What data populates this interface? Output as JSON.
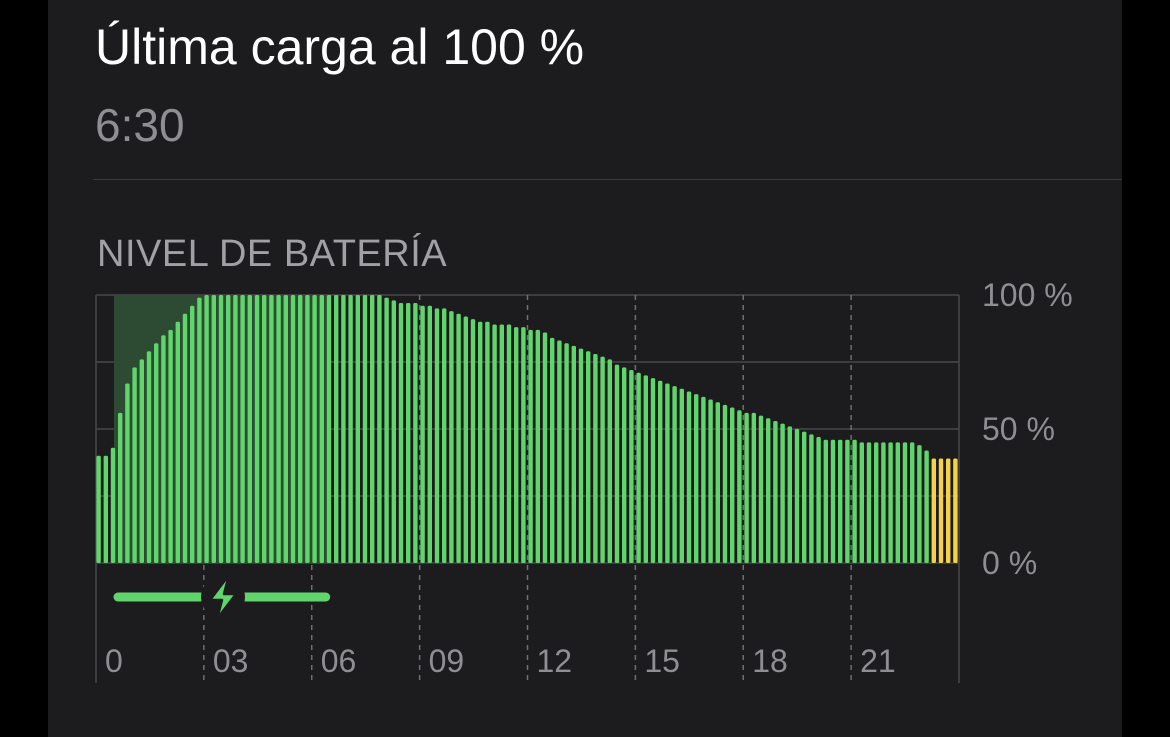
{
  "header": {
    "title": "Última carga al 100 %",
    "time": "6:30"
  },
  "section": {
    "label": "NIVEL DE BATERÍA"
  },
  "colors": {
    "normal": "#5fd56b",
    "low": "#f5d04a",
    "charging_shade": "#2d4a33",
    "charging_bar": "#5fd56b"
  },
  "icons": {
    "charging": "lightning-bolt-icon"
  },
  "chart_data": {
    "type": "bar",
    "title": "NIVEL DE BATERÍA",
    "ylim": [
      0,
      100
    ],
    "yticks": [
      "100 %",
      "50 %",
      "0 %"
    ],
    "xticks": [
      "0",
      "03",
      "06",
      "09",
      "12",
      "15",
      "18",
      "21"
    ],
    "x_range_hours": [
      0,
      24
    ],
    "grid": true,
    "charging_period_hours": [
      0.5,
      6.5
    ],
    "low_power_from_index": 116,
    "values": [
      40,
      40,
      43,
      56,
      67,
      73,
      76,
      79,
      82,
      85,
      87,
      90,
      93,
      96,
      99,
      100,
      100,
      100,
      100,
      100,
      100,
      100,
      100,
      100,
      100,
      100,
      100,
      100,
      100,
      100,
      100,
      100,
      100,
      100,
      100,
      100,
      100,
      100,
      100,
      100,
      99,
      98,
      97,
      97,
      97,
      96,
      96,
      95,
      95,
      94,
      93,
      92,
      91,
      90,
      90,
      89,
      89,
      89,
      88,
      88,
      87,
      87,
      86,
      84,
      83,
      82,
      81,
      80,
      79,
      78,
      77,
      76,
      74,
      73,
      72,
      71,
      70,
      69,
      68,
      67,
      66,
      65,
      64,
      63,
      62,
      61,
      60,
      59,
      58,
      57,
      56,
      56,
      55,
      54,
      53,
      52,
      51,
      50,
      49,
      48,
      47,
      46,
      46,
      46,
      46,
      46,
      45,
      45,
      45,
      45,
      45,
      45,
      45,
      45,
      44,
      42,
      39,
      39,
      39,
      39
    ]
  }
}
